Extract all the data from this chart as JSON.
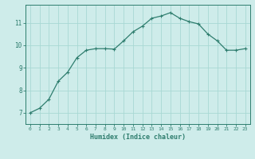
{
  "x": [
    0,
    1,
    2,
    3,
    4,
    5,
    6,
    7,
    8,
    9,
    10,
    11,
    12,
    13,
    14,
    15,
    16,
    17,
    18,
    19,
    20,
    21,
    22,
    23
  ],
  "y": [
    7.0,
    7.2,
    7.6,
    8.4,
    8.8,
    9.45,
    9.78,
    9.85,
    9.85,
    9.83,
    10.2,
    10.6,
    10.85,
    11.2,
    11.3,
    11.45,
    11.2,
    11.05,
    10.95,
    10.5,
    10.2,
    9.78,
    9.78,
    9.85
  ],
  "xlabel": "Humidex (Indice chaleur)",
  "line_color": "#2e7d6e",
  "marker": "+",
  "marker_size": 3,
  "line_width": 0.9,
  "bg_color": "#ceecea",
  "grid_color": "#a8d8d4",
  "tick_color": "#2e7d6e",
  "label_color": "#2e7d6e",
  "ylim": [
    6.5,
    11.8
  ],
  "xlim": [
    -0.5,
    23.5
  ],
  "yticks": [
    7,
    8,
    9,
    10,
    11
  ],
  "xticks": [
    0,
    1,
    2,
    3,
    4,
    5,
    6,
    7,
    8,
    9,
    10,
    11,
    12,
    13,
    14,
    15,
    16,
    17,
    18,
    19,
    20,
    21,
    22,
    23
  ]
}
